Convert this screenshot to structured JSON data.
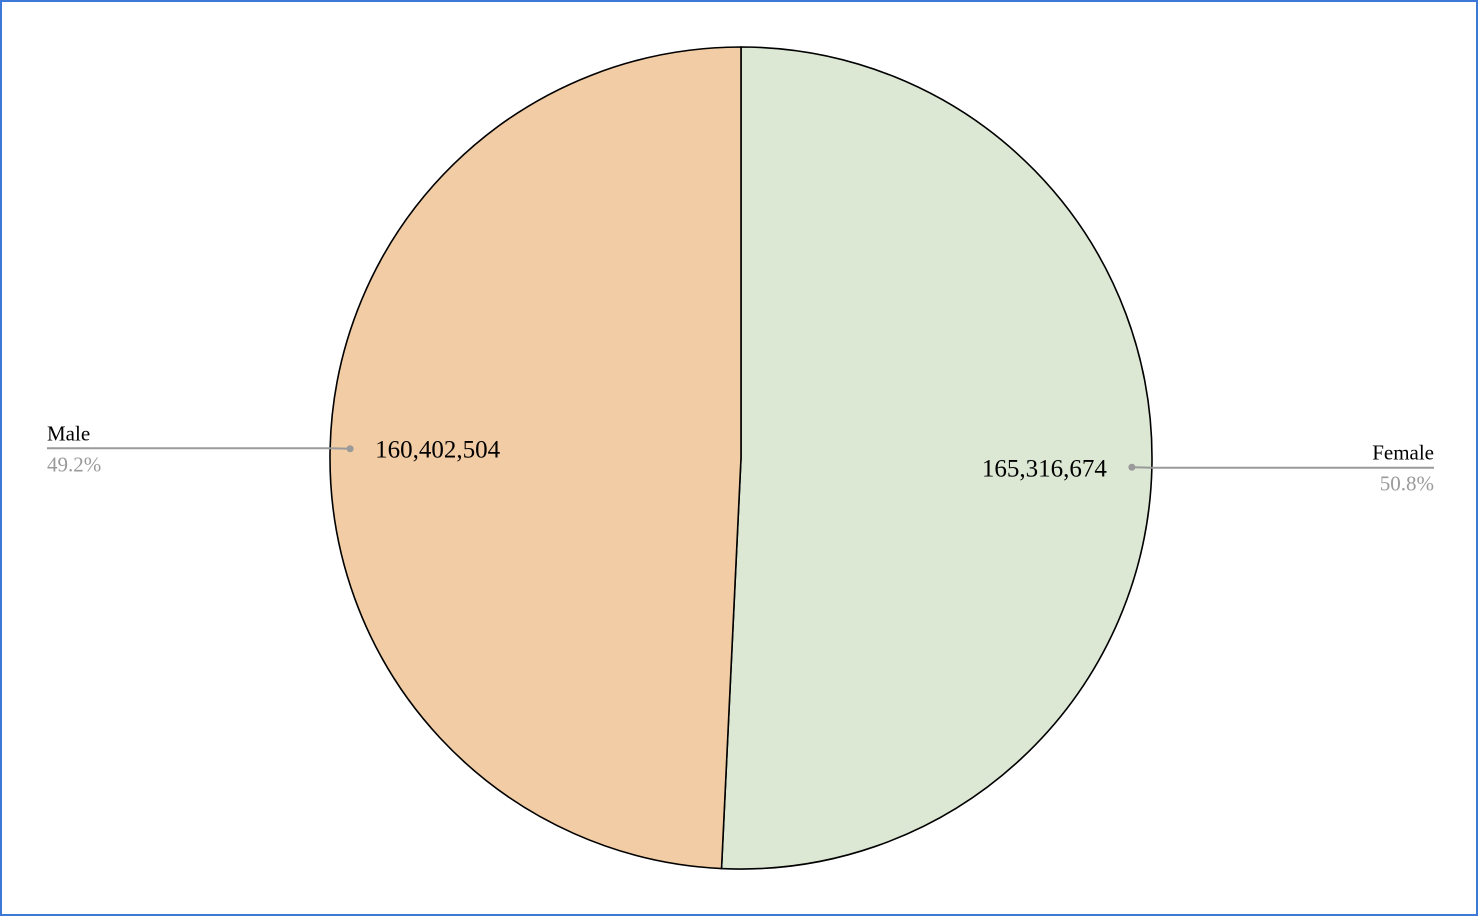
{
  "chart_data": {
    "type": "pie",
    "categories": [
      "Male",
      "Female"
    ],
    "values": [
      160402504,
      165316674
    ],
    "value_labels": [
      "160,402,504",
      "165,316,674"
    ],
    "percent_labels": [
      "49.2%",
      "50.8%"
    ],
    "colors": [
      "#f2cca4",
      "#dce8d4"
    ],
    "legend": "none",
    "title": ""
  }
}
